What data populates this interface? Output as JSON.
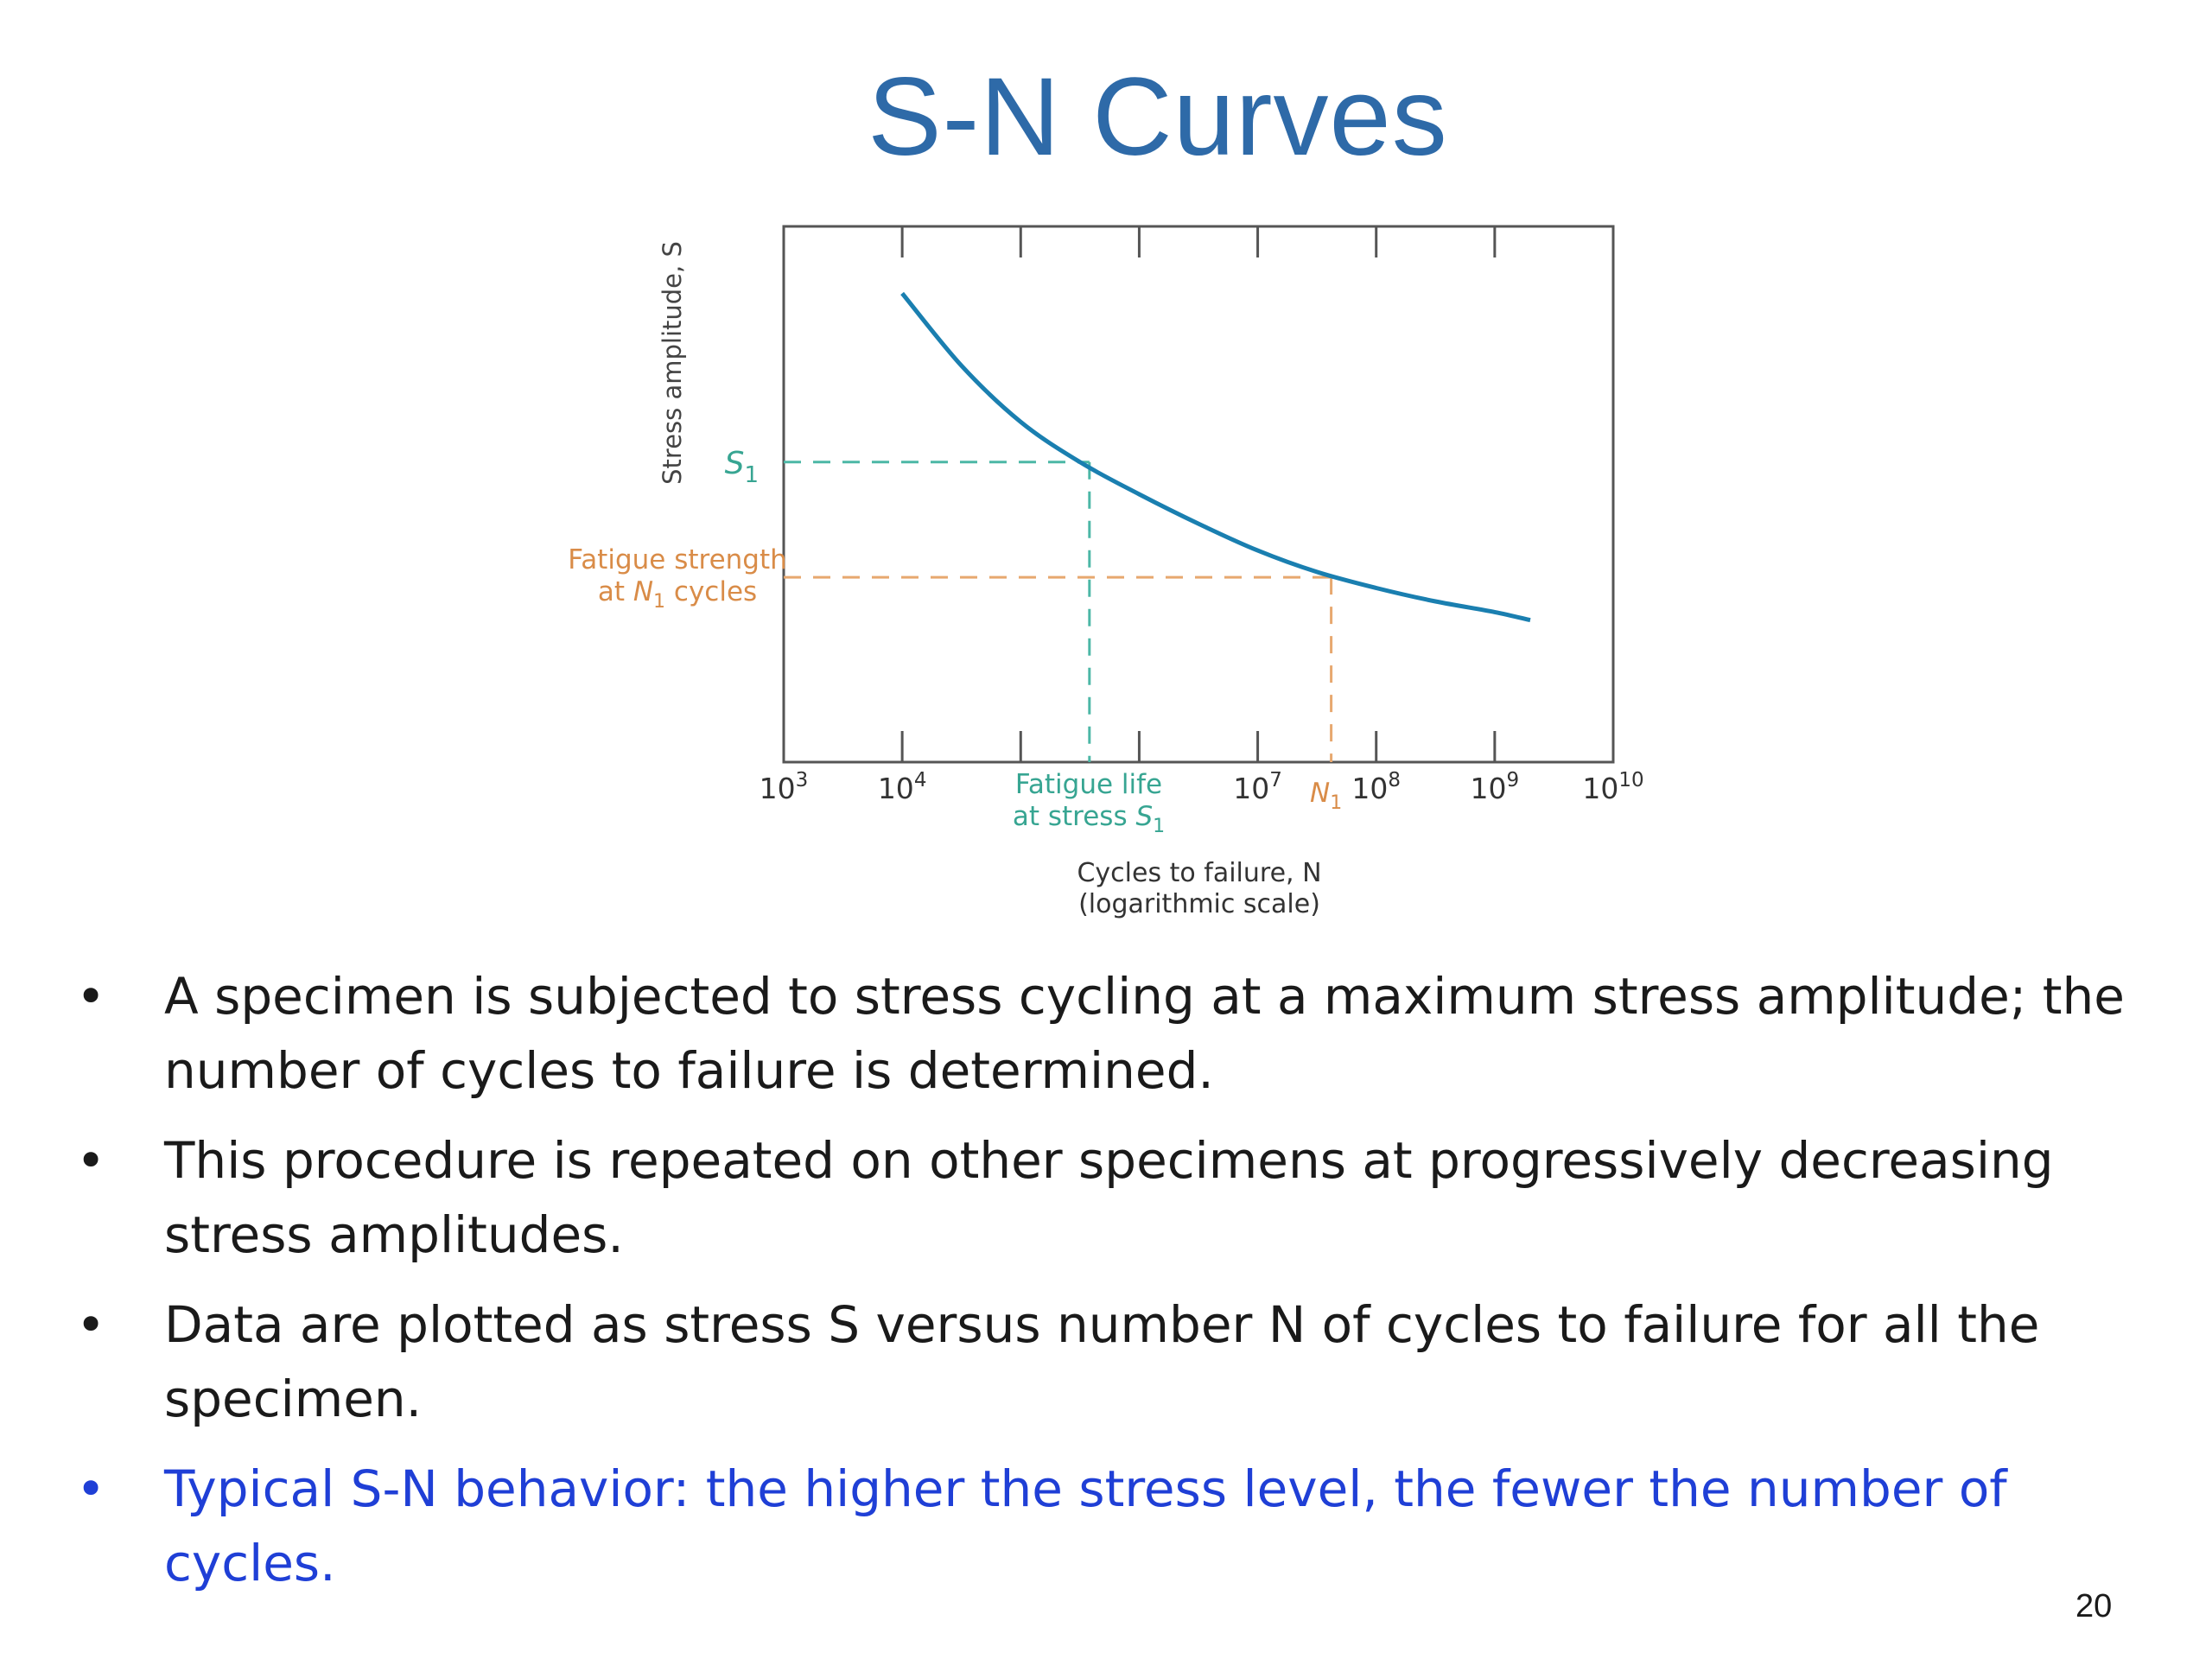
{
  "title": "S-N Curves",
  "chart_data": {
    "type": "line",
    "ylabel": "Stress amplitude, S",
    "xlabel": "Cycles to failure, N",
    "xlabel_note": "(logarithmic scale)",
    "x_scale": "log",
    "xlim": [
      1000,
      10000000000
    ],
    "x_ticks": [
      {
        "exp": 3,
        "label": "10",
        "sup": "3"
      },
      {
        "exp": 4,
        "label": "10",
        "sup": "4"
      },
      {
        "exp": 5,
        "label": "",
        "sup": ""
      },
      {
        "exp": 6,
        "label": "",
        "sup": ""
      },
      {
        "exp": 7,
        "label": "10",
        "sup": "7"
      },
      {
        "exp": 8,
        "label": "10",
        "sup": "8"
      },
      {
        "exp": 9,
        "label": "10",
        "sup": "9"
      },
      {
        "exp": 10,
        "label": "10",
        "sup": "10"
      }
    ],
    "ylim": [
      0,
      1
    ],
    "y_ticks": [],
    "series": [
      {
        "x": [
          10000,
          31623,
          100000,
          316228,
          1000000,
          3162278,
          10000000,
          31622777,
          100000000,
          316227766,
          1000000000,
          1995262315
        ],
        "y": [
          0.875,
          0.74,
          0.635,
          0.56,
          0.5,
          0.445,
          0.395,
          0.355,
          0.325,
          0.3,
          0.28,
          0.265
        ]
      }
    ],
    "annotations": {
      "s1": {
        "label": "S",
        "sub": "1",
        "stress": 0.56,
        "cycles_log": 5.58
      },
      "fatigue_strength": {
        "line1": "Fatigue strength",
        "line2a": "at ",
        "line2b": "N",
        "line2sub": "1",
        "line2c": " cycles",
        "stress": 0.345,
        "cycles_log": 7.62
      },
      "fatigue_life": {
        "line1": "Fatigue life",
        "line2a": "at stress ",
        "line2b": "S",
        "line2sub": "1"
      },
      "n1": {
        "label": "N",
        "sub": "1"
      }
    },
    "colors": {
      "curve": "#1a7fb0",
      "s1_line": "#4cb7a6",
      "fatigue_line": "#e7a86f",
      "axis": "#555555",
      "s1_text": "#37a592",
      "fatigue_text": "#d98c48"
    },
    "grid": false
  },
  "bullets": [
    {
      "text": "A specimen is subjected to stress cycling at a maximum stress amplitude; the number of cycles to failure is determined.",
      "highlight": false
    },
    {
      "text": "This procedure is repeated on other specimens at progressively decreasing stress amplitudes.",
      "highlight": false
    },
    {
      "text": "Data are plotted as stress S versus number N of cycles to failure for all the specimen.",
      "highlight": false
    },
    {
      "text": "Typical S-N behavior: the higher the stress level, the fewer the number of cycles.",
      "highlight": true
    }
  ],
  "bullet_symbol": "•",
  "page_number": "20"
}
